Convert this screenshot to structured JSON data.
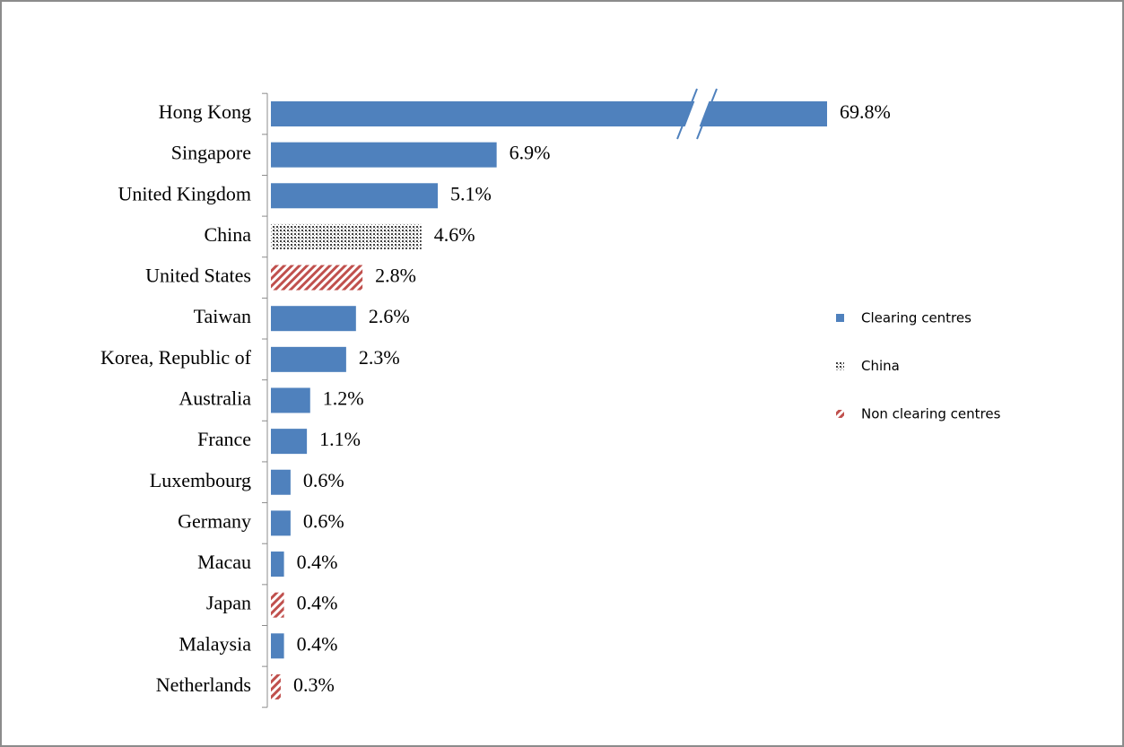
{
  "chart_data": {
    "type": "hbar",
    "categories": [
      "Hong Kong",
      "Singapore",
      "United Kingdom",
      "China",
      "United States",
      "Taiwan",
      "Korea, Republic of",
      "Australia",
      "France",
      "Luxembourg",
      "Germany",
      "Macau",
      "Japan",
      "Malaysia",
      "Netherlands"
    ],
    "series": [
      {
        "name": "Clearing centres",
        "color": "#4f81bd",
        "pattern": "solid",
        "values": [
          69.8,
          6.9,
          5.1,
          null,
          null,
          2.6,
          2.3,
          1.2,
          1.1,
          0.6,
          0.6,
          0.4,
          null,
          0.4,
          null
        ],
        "value_labels": [
          "69.8%",
          "6.9%",
          "5.1%",
          null,
          null,
          "2.6%",
          "2.3%",
          "1.2%",
          "1.1%",
          "0.6%",
          "0.6%",
          "0.4%",
          null,
          "0.4%",
          null
        ]
      },
      {
        "name": "China",
        "color": "#404040",
        "pattern": "dots",
        "values": [
          null,
          null,
          null,
          4.6,
          null,
          null,
          null,
          null,
          null,
          null,
          null,
          null,
          null,
          null,
          null
        ],
        "value_labels": [
          null,
          null,
          null,
          "4.6%",
          null,
          null,
          null,
          null,
          null,
          null,
          null,
          null,
          null,
          null,
          null
        ]
      },
      {
        "name": "Non clearing centres",
        "color": "#c0504d",
        "pattern": "hatch",
        "values": [
          null,
          null,
          null,
          null,
          2.8,
          null,
          null,
          null,
          null,
          null,
          null,
          null,
          0.4,
          null,
          0.3
        ],
        "value_labels": [
          null,
          null,
          null,
          null,
          "2.8%",
          null,
          null,
          null,
          null,
          null,
          null,
          null,
          "0.4%",
          null,
          "0.3%"
        ]
      }
    ],
    "xlim": [
      0,
      17
    ],
    "broken_axis": true,
    "legend": "right"
  }
}
